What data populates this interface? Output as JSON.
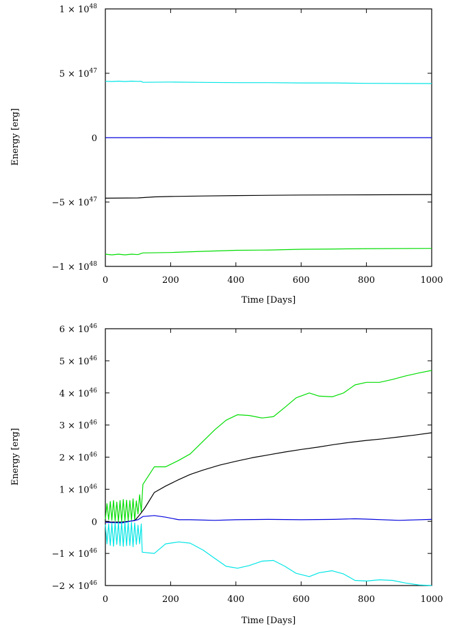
{
  "chart_data": [
    {
      "type": "line",
      "xlabel": "Time [Days]",
      "ylabel": "Energy [erg]",
      "xlim": [
        0,
        1000
      ],
      "ylim": [
        -1e+48,
        1e+48
      ],
      "x_ticks": [
        0,
        200,
        400,
        600,
        800,
        1000
      ],
      "y_ticks": [
        {
          "value": 1e+48,
          "mant": "1 × 10",
          "exp": "48"
        },
        {
          "value": 5e+47,
          "mant": "5 × 10",
          "exp": "47"
        },
        {
          "value": 0,
          "mant": "0",
          "exp": ""
        },
        {
          "value": -5e+47,
          "mant": "−5 × 10",
          "exp": "47"
        },
        {
          "value": -1e+48,
          "mant": "−1 × 10",
          "exp": "48"
        }
      ],
      "series": [
        {
          "color": "#00e5e5",
          "points": [
            [
              0,
              4.38e+47
            ],
            [
              20,
              4.36e+47
            ],
            [
              40,
              4.39e+47
            ],
            [
              60,
              4.36e+47
            ],
            [
              80,
              4.39e+47
            ],
            [
              100,
              4.37e+47
            ],
            [
              110,
              4.38e+47
            ],
            [
              115,
              4.3e+47
            ],
            [
              200,
              4.32e+47
            ],
            [
              300,
              4.29e+47
            ],
            [
              400,
              4.27e+47
            ],
            [
              500,
              4.27e+47
            ],
            [
              600,
              4.25e+47
            ],
            [
              700,
              4.25e+47
            ],
            [
              800,
              4.22e+47
            ],
            [
              1000,
              4.2e+47
            ]
          ]
        },
        {
          "color": "#0000dd",
          "points": [
            [
              0,
              0
            ],
            [
              100,
              0
            ],
            [
              150,
              3e+44
            ],
            [
              200,
              0
            ],
            [
              400,
              0
            ],
            [
              600,
              0
            ],
            [
              800,
              0
            ],
            [
              1000,
              0
            ]
          ]
        },
        {
          "color": "#000000",
          "points": [
            [
              0,
              -4.7e+47
            ],
            [
              100,
              -4.68e+47
            ],
            [
              150,
              -4.6e+47
            ],
            [
              200,
              -4.57e+47
            ],
            [
              300,
              -4.53e+47
            ],
            [
              400,
              -4.5e+47
            ],
            [
              500,
              -4.48e+47
            ],
            [
              600,
              -4.46e+47
            ],
            [
              800,
              -4.44e+47
            ],
            [
              1000,
              -4.42e+47
            ]
          ]
        },
        {
          "color": "#00dd00",
          "points": [
            [
              0,
              -9.05e+47
            ],
            [
              20,
              -9.1e+47
            ],
            [
              40,
              -9.05e+47
            ],
            [
              60,
              -9.1e+47
            ],
            [
              80,
              -9.05e+47
            ],
            [
              100,
              -9.08e+47
            ],
            [
              115,
              -8.95e+47
            ],
            [
              200,
              -8.92e+47
            ],
            [
              300,
              -8.83e+47
            ],
            [
              400,
              -8.75e+47
            ],
            [
              500,
              -8.73e+47
            ],
            [
              600,
              -8.67e+47
            ],
            [
              700,
              -8.65e+47
            ],
            [
              800,
              -8.62e+47
            ],
            [
              1000,
              -8.6e+47
            ]
          ]
        }
      ]
    },
    {
      "type": "line",
      "xlabel": "Time [Days]",
      "ylabel": "Energy [erg]",
      "xlim": [
        0,
        1000
      ],
      "ylim": [
        -2e+46,
        6e+46
      ],
      "x_ticks": [
        0,
        200,
        400,
        600,
        800,
        1000
      ],
      "y_ticks": [
        {
          "value": 6e+46,
          "mant": "6 × 10",
          "exp": "46"
        },
        {
          "value": 5e+46,
          "mant": "5 × 10",
          "exp": "46"
        },
        {
          "value": 4e+46,
          "mant": "4 × 10",
          "exp": "46"
        },
        {
          "value": 3e+46,
          "mant": "3 × 10",
          "exp": "46"
        },
        {
          "value": 2e+46,
          "mant": "2 × 10",
          "exp": "46"
        },
        {
          "value": 1e+46,
          "mant": "1 × 10",
          "exp": "46"
        },
        {
          "value": 0,
          "mant": "0",
          "exp": ""
        },
        {
          "value": -1e+46,
          "mant": "−1 × 10",
          "exp": "46"
        },
        {
          "value": -2e+46,
          "mant": "−2 × 10",
          "exp": "46"
        }
      ],
      "series": [
        {
          "color": "#00dd00",
          "points": [
            [
              0,
              7e+44
            ],
            [
              5,
              5.5e+45
            ],
            [
              10,
              5e+44
            ],
            [
              15,
              6.2e+45
            ],
            [
              20,
              3e+44
            ],
            [
              25,
              6.5e+45
            ],
            [
              30,
              2e+44
            ],
            [
              35,
              6e+45
            ],
            [
              40,
              0
            ],
            [
              45,
              6.5e+45
            ],
            [
              50,
              0
            ],
            [
              55,
              6.8e+45
            ],
            [
              60,
              1e+44
            ],
            [
              65,
              6.6e+45
            ],
            [
              70,
              2e+44
            ],
            [
              75,
              6.5e+45
            ],
            [
              80,
              4e+44
            ],
            [
              85,
              7e+45
            ],
            [
              90,
              5e+44
            ],
            [
              95,
              6.4e+45
            ],
            [
              100,
              2.3e+45
            ],
            [
              105,
              8.3e+45
            ],
            [
              110,
              3e+45
            ],
            [
              115,
              1.15e+46
            ],
            [
              150,
              1.7e+46
            ],
            [
              185,
              1.7e+46
            ],
            [
              225,
              1.9e+46
            ],
            [
              260,
              2.1e+46
            ],
            [
              300,
              2.5e+46
            ],
            [
              335,
              2.85e+46
            ],
            [
              370,
              3.15e+46
            ],
            [
              405,
              3.32e+46
            ],
            [
              440,
              3.3e+46
            ],
            [
              480,
              3.22e+46
            ],
            [
              515,
              3.26e+46
            ],
            [
              550,
              3.55e+46
            ],
            [
              585,
              3.85e+46
            ],
            [
              625,
              4e+46
            ],
            [
              655,
              3.9e+46
            ],
            [
              695,
              3.88e+46
            ],
            [
              730,
              4e+46
            ],
            [
              765,
              4.25e+46
            ],
            [
              800,
              4.33e+46
            ],
            [
              840,
              4.33e+46
            ],
            [
              880,
              4.42e+46
            ],
            [
              920,
              4.53e+46
            ],
            [
              960,
              4.62e+46
            ],
            [
              1000,
              4.7e+46
            ]
          ]
        },
        {
          "color": "#000000",
          "points": [
            [
              0,
              -2e+44
            ],
            [
              50,
              -2e+44
            ],
            [
              90,
              2e+44
            ],
            [
              105,
              2e+45
            ],
            [
              120,
              4e+45
            ],
            [
              150,
              9e+45
            ],
            [
              185,
              1.1e+46
            ],
            [
              225,
              1.3e+46
            ],
            [
              260,
              1.46e+46
            ],
            [
              300,
              1.6e+46
            ],
            [
              350,
              1.75e+46
            ],
            [
              400,
              1.87e+46
            ],
            [
              450,
              1.98e+46
            ],
            [
              500,
              2.07e+46
            ],
            [
              550,
              2.16e+46
            ],
            [
              600,
              2.24e+46
            ],
            [
              650,
              2.31e+46
            ],
            [
              700,
              2.39e+46
            ],
            [
              750,
              2.46e+46
            ],
            [
              800,
              2.52e+46
            ],
            [
              850,
              2.57e+46
            ],
            [
              900,
              2.63e+46
            ],
            [
              950,
              2.69e+46
            ],
            [
              1000,
              2.76e+46
            ]
          ]
        },
        {
          "color": "#0000dd",
          "points": [
            [
              0,
              -3e+44
            ],
            [
              50,
              -5e+44
            ],
            [
              100,
              5e+44
            ],
            [
              115,
              1.5e+45
            ],
            [
              150,
              1.8e+45
            ],
            [
              185,
              1.3e+45
            ],
            [
              225,
              5e+44
            ],
            [
              260,
              5e+44
            ],
            [
              335,
              3e+44
            ],
            [
              400,
              5e+44
            ],
            [
              500,
              6e+44
            ],
            [
              600,
              5e+44
            ],
            [
              700,
              6e+44
            ],
            [
              765,
              8e+44
            ],
            [
              800,
              7e+44
            ],
            [
              900,
              3e+44
            ],
            [
              1000,
              6e+44
            ]
          ]
        },
        {
          "color": "#00e5e5",
          "points": [
            [
              0,
              -1e+45
            ],
            [
              5,
              -7e+45
            ],
            [
              10,
              -8e+44
            ],
            [
              15,
              -7.5e+45
            ],
            [
              20,
              -5e+44
            ],
            [
              25,
              -7.8e+45
            ],
            [
              30,
              -3e+44
            ],
            [
              35,
              -7.2e+45
            ],
            [
              40,
              -3e+44
            ],
            [
              45,
              -7.6e+45
            ],
            [
              50,
              -2e+44
            ],
            [
              55,
              -7.8e+45
            ],
            [
              60,
              -1e+44
            ],
            [
              65,
              -7.6e+45
            ],
            [
              70,
              -2e+44
            ],
            [
              75,
              -7.5e+45
            ],
            [
              80,
              -3e+44
            ],
            [
              85,
              -7.9e+45
            ],
            [
              90,
              -5e+44
            ],
            [
              95,
              -7.2e+45
            ],
            [
              100,
              -1.2e+45
            ],
            [
              105,
              -7e+45
            ],
            [
              110,
              -8e+44
            ],
            [
              113,
              -9.6e+45
            ],
            [
              150,
              -1e+46
            ],
            [
              185,
              -7e+45
            ],
            [
              225,
              -6.4e+45
            ],
            [
              260,
              -6.8e+45
            ],
            [
              300,
              -9e+45
            ],
            [
              335,
              -1.15e+46
            ],
            [
              370,
              -1.4e+46
            ],
            [
              405,
              -1.46e+46
            ],
            [
              440,
              -1.38e+46
            ],
            [
              480,
              -1.24e+46
            ],
            [
              515,
              -1.22e+46
            ],
            [
              550,
              -1.4e+46
            ],
            [
              585,
              -1.62e+46
            ],
            [
              625,
              -1.72e+46
            ],
            [
              655,
              -1.6e+46
            ],
            [
              695,
              -1.54e+46
            ],
            [
              730,
              -1.64e+46
            ],
            [
              765,
              -1.84e+46
            ],
            [
              800,
              -1.86e+46
            ],
            [
              840,
              -1.82e+46
            ],
            [
              880,
              -1.84e+46
            ],
            [
              920,
              -1.92e+46
            ],
            [
              960,
              -1.98e+46
            ],
            [
              1000,
              -2e+46
            ]
          ]
        }
      ]
    }
  ]
}
